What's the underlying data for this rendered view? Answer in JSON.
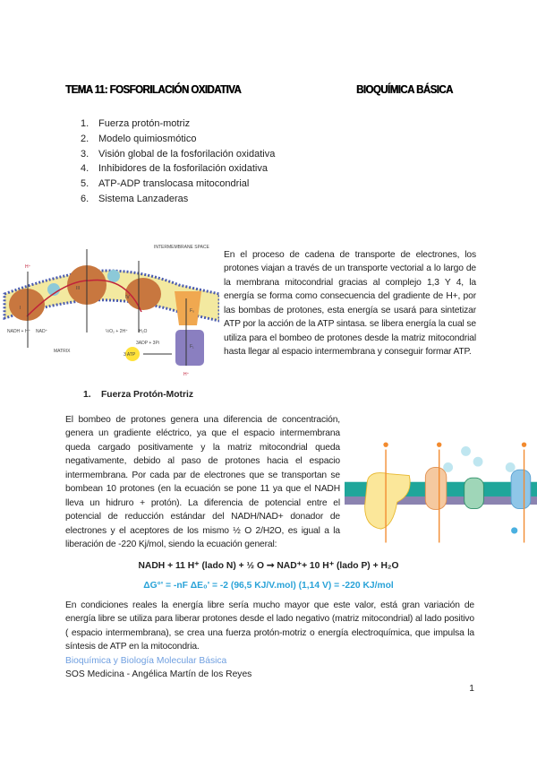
{
  "header": {
    "title_left": "TEMA 11: FOSFORILACIÓN OXIDATIVA",
    "title_right": "BIOQUÍMICA BÁSICA"
  },
  "toc": [
    {
      "num": "1.",
      "label": "Fuerza protón-motriz"
    },
    {
      "num": "2.",
      "label": "Modelo quimiosmótico"
    },
    {
      "num": "3.",
      "label": "Visión global de la fosforilación oxidativa"
    },
    {
      "num": "4.",
      "label": "Inhibidores de la fosforilación oxidativa"
    },
    {
      "num": "5.",
      "label": "ATP-ADP translocasa mitocondrial"
    },
    {
      "num": "6.",
      "label": "Sistema Lanzaderas"
    }
  ],
  "figure1": {
    "labels": {
      "space": "INTERMEMBRANE SPACE",
      "matrix": "MATRIX",
      "nadh": "NADH + H⁺",
      "nad": "NAD⁺",
      "o2": "½O₂ + 2H⁺",
      "h2o": "H₂O",
      "adp": "3ADP + 3Pi",
      "atp": "3 ATP",
      "hplus": "H⁺",
      "c1": "I",
      "c3": "III",
      "c4": "IV",
      "f0": "F₀",
      "f1": "F₁"
    }
  },
  "intro_paragraph": "En el proceso de cadena de transporte de electrones, los protones viajan a través de un transporte vectorial a lo largo de la membrana mitocondrial gracias al complejo 1,3 Y 4, la energía se forma como consecuencia del gradiente de H+, por las bombas de protones, esta energía se usará para sintetizar ATP por la acción de la ATP sintasa.  se libera energía la cual se utiliza para el bombeo de protones desde la matriz mitocondrial hasta llegar al espacio intermembrana y conseguir formar ATP.",
  "section1": {
    "heading_num": "1.",
    "heading": "Fuerza Protón-Motriz",
    "paragraph": "El bombeo de protones genera una diferencia de concentración, genera un gradiente eléctrico, ya que el espacio intermembrana queda cargado positivamente y la matriz mitocondrial queda negativamente, debido al paso de protones hacia el espacio intermembrana. Por cada par de electrones que se transportan se bombean 10 protones (en la ecuación se pone 11 ya que el NADH lleva un hidruro + protón). La diferencia de potencial entre el potencial de reducción estándar del NADH/NAD+ donador de electrones y el aceptores de los mismo ½ O 2/H2O, es igual a la liberación de -220 Kj/mol, siendo la ecuación general:",
    "equation": "NADH + 11 H⁺ (lado N) + ½ O ➞ NAD⁺+ 10 H⁺ (lado P) + H₂O",
    "delta_g": "ΔG°' = -nF ΔE₀' = -2 (96,5 KJ/V.mol) (1,14 V) = -220 KJ/mol",
    "paragraph2": "En condiciones reales la energía libre sería mucho mayor que este valor, está gran variación de energía libre se utiliza para liberar protones desde el lado negativo (matriz mitocondrial) al lado positivo ( espacio intermembrana), se crea una fuerza protón-motriz o energía electroquímica, que impulsa la síntesis de ATP en la mitocondria."
  },
  "footer": {
    "source": "Bioquímica y Biología Molecular Básica",
    "author": "SOS Medicina - Angélica Martín de los Reyes",
    "page_number": "1"
  },
  "colors": {
    "equation_blue": "#2aa3d8",
    "source_blue": "#6f9fe0",
    "complex_brown": "#c8773f",
    "membrane_yellow": "#f3e9a0",
    "proton_orange": "#f28a2e"
  }
}
